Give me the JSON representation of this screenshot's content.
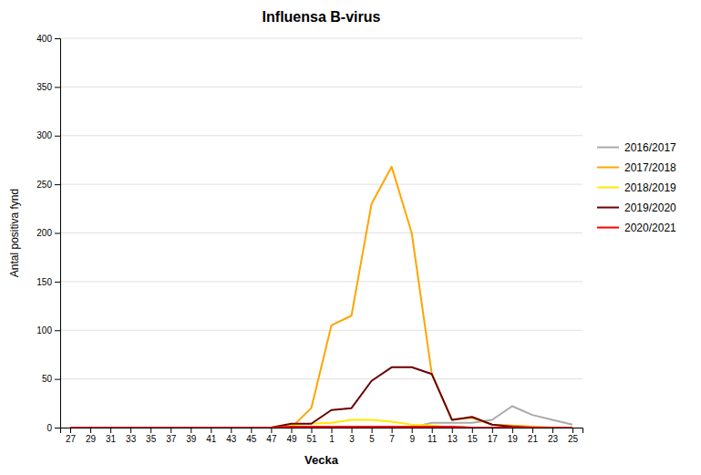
{
  "chart_data": {
    "type": "line",
    "title": "Influensa B-virus",
    "xlabel": "Vecka",
    "ylabel": "Antal positiva fynd",
    "categories": [
      "27",
      "29",
      "31",
      "33",
      "35",
      "37",
      "39",
      "41",
      "43",
      "45",
      "47",
      "49",
      "51",
      "1",
      "3",
      "5",
      "7",
      "9",
      "11",
      "13",
      "15",
      "17",
      "19",
      "21",
      "23",
      "25"
    ],
    "series": [
      {
        "name": "2016/2017",
        "color": "#aaaaaa",
        "values": [
          0,
          0,
          0,
          0,
          0,
          0,
          0,
          0,
          0,
          0,
          0,
          0,
          0,
          0,
          0,
          0,
          0,
          0,
          5,
          5,
          5,
          8,
          22,
          13,
          8,
          3
        ]
      },
      {
        "name": "2017/2018",
        "color": "#FFA500",
        "values": [
          0,
          0,
          0,
          0,
          0,
          0,
          0,
          0,
          0,
          0,
          0,
          0,
          20,
          105,
          115,
          230,
          268,
          200,
          55,
          8,
          10,
          3,
          2,
          1,
          0,
          0
        ]
      },
      {
        "name": "2018/2019",
        "color": "#FFE800",
        "values": [
          0,
          0,
          0,
          0,
          0,
          0,
          0,
          0,
          0,
          0,
          0,
          3,
          4,
          5,
          8,
          8,
          6,
          3,
          2,
          0,
          0,
          0,
          0,
          0,
          0,
          0
        ]
      },
      {
        "name": "2019/2020",
        "color": "#6B0000",
        "values": [
          0,
          0,
          0,
          0,
          0,
          0,
          0,
          0,
          0,
          0,
          0,
          4,
          4,
          18,
          20,
          48,
          62,
          62,
          55,
          8,
          11,
          3,
          1,
          0,
          0,
          0
        ]
      },
      {
        "name": "2020/2021",
        "color": "#FF0000",
        "values": [
          0,
          0,
          0,
          0,
          0,
          0,
          0,
          0,
          0,
          0,
          0,
          1,
          1,
          1,
          1,
          1,
          1,
          1,
          1,
          1,
          0,
          0,
          0,
          0,
          0,
          0
        ]
      }
    ],
    "ylim": [
      0,
      400
    ],
    "yticks": [
      0,
      50,
      100,
      150,
      200,
      250,
      300,
      350,
      400
    ],
    "grid": true,
    "legend": "right"
  }
}
